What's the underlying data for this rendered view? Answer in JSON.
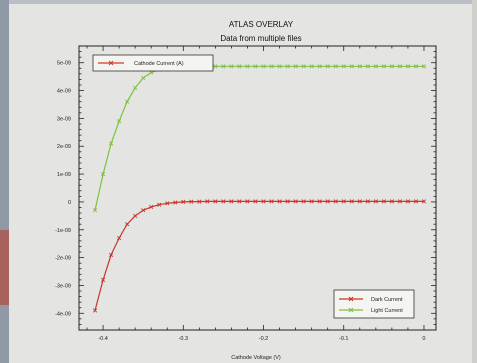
{
  "window": {
    "title": "ATLAS OVERLAY",
    "subtitle": "Data from multiple files"
  },
  "chart_data": {
    "type": "line",
    "title": "ATLAS OVERLAY",
    "subtitle": "Data from multiple files",
    "xlabel": "Cathode Voltage (V)",
    "ylabel": "Cathode Current (A)",
    "xlim": [
      -0.43,
      0.015
    ],
    "ylim": [
      -4.6e-09,
      5.6e-09
    ],
    "x_ticks": [
      -0.4,
      -0.3,
      -0.2,
      -0.1,
      0
    ],
    "x_tick_labels": [
      "-0.4",
      "-0.3",
      "-0.2",
      "-0.1",
      "0"
    ],
    "y_ticks": [
      5e-09,
      4e-09,
      3e-09,
      2e-09,
      1e-09,
      0,
      -1e-09,
      -2e-09,
      -3e-09,
      -4e-09
    ],
    "y_tick_labels": [
      "5e-09",
      "4e-09",
      "3e-09",
      "2e-09",
      "1e-09",
      "0",
      "-1e-09",
      "-2e-09",
      "-3e-09",
      "-4e-09"
    ],
    "grid": false,
    "legends": [
      {
        "position": "top-left",
        "entries": [
          {
            "label": "Cathode Current (A)",
            "color": "#d03a2a"
          }
        ]
      },
      {
        "position": "bottom-right",
        "entries": [
          {
            "label": "Dark Current",
            "color": "#c8352a"
          },
          {
            "label": "Light Current",
            "color": "#7cc242"
          }
        ]
      }
    ],
    "series": [
      {
        "name": "Dark Current",
        "color": "#c8352a",
        "marker": "x",
        "x": [
          -0.41,
          -0.4,
          -0.39,
          -0.38,
          -0.37,
          -0.36,
          -0.35,
          -0.34,
          -0.33,
          -0.32,
          -0.31,
          -0.3,
          -0.29,
          -0.28,
          -0.27,
          -0.26,
          -0.25,
          -0.24,
          -0.23,
          -0.22,
          -0.21,
          -0.2,
          -0.19,
          -0.18,
          -0.17,
          -0.16,
          -0.15,
          -0.14,
          -0.13,
          -0.12,
          -0.11,
          -0.1,
          -0.09,
          -0.08,
          -0.07,
          -0.06,
          -0.05,
          -0.04,
          -0.03,
          -0.02,
          -0.01,
          0
        ],
        "y": [
          -3.9e-09,
          -2.8e-09,
          -1.9e-09,
          -1.3e-09,
          -8e-10,
          -5e-10,
          -3e-10,
          -1.8e-10,
          -1e-10,
          -5e-11,
          -2e-11,
          0,
          1e-11,
          1e-11,
          2e-11,
          2e-11,
          2e-11,
          2e-11,
          2e-11,
          2e-11,
          2e-11,
          2e-11,
          2e-11,
          2e-11,
          2e-11,
          2e-11,
          2e-11,
          2e-11,
          2e-11,
          2e-11,
          2e-11,
          2e-11,
          2e-11,
          2e-11,
          2e-11,
          2e-11,
          2e-11,
          2e-11,
          2e-11,
          2e-11,
          2e-11,
          2e-11
        ]
      },
      {
        "name": "Light Current",
        "color": "#7cc242",
        "marker": "x",
        "x": [
          -0.41,
          -0.4,
          -0.39,
          -0.38,
          -0.37,
          -0.36,
          -0.35,
          -0.34,
          -0.33,
          -0.32,
          -0.31,
          -0.3,
          -0.29,
          -0.28,
          -0.27,
          -0.26,
          -0.25,
          -0.24,
          -0.23,
          -0.22,
          -0.21,
          -0.2,
          -0.19,
          -0.18,
          -0.17,
          -0.16,
          -0.15,
          -0.14,
          -0.13,
          -0.12,
          -0.11,
          -0.1,
          -0.09,
          -0.08,
          -0.07,
          -0.06,
          -0.05,
          -0.04,
          -0.03,
          -0.02,
          -0.01,
          0
        ],
        "y": [
          -3e-10,
          1e-09,
          2.1e-09,
          2.9e-09,
          3.6e-09,
          4.1e-09,
          4.45e-09,
          4.65e-09,
          4.75e-09,
          4.8e-09,
          4.83e-09,
          4.85e-09,
          4.86e-09,
          4.86e-09,
          4.87e-09,
          4.87e-09,
          4.87e-09,
          4.87e-09,
          4.87e-09,
          4.87e-09,
          4.87e-09,
          4.87e-09,
          4.87e-09,
          4.87e-09,
          4.87e-09,
          4.87e-09,
          4.87e-09,
          4.87e-09,
          4.87e-09,
          4.87e-09,
          4.87e-09,
          4.87e-09,
          4.87e-09,
          4.87e-09,
          4.87e-09,
          4.87e-09,
          4.87e-09,
          4.87e-09,
          4.87e-09,
          4.87e-09,
          4.87e-09,
          4.87e-09
        ]
      }
    ]
  }
}
